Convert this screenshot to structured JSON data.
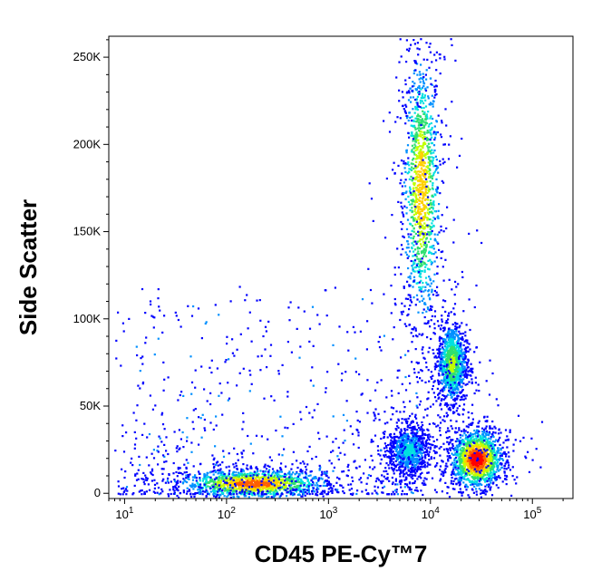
{
  "chart_data": {
    "type": "scatter",
    "xlabel": "CD45 PE-Cy™7",
    "ylabel": "Side Scatter",
    "x_scale": "log",
    "xlim": [
      7,
      250000
    ],
    "ylim": [
      -3000,
      262000
    ],
    "x_ticks": [
      {
        "value": 10,
        "base": "10",
        "exp": "1"
      },
      {
        "value": 100,
        "base": "10",
        "exp": "2"
      },
      {
        "value": 1000,
        "base": "10",
        "exp": "3"
      },
      {
        "value": 10000,
        "base": "10",
        "exp": "4"
      },
      {
        "value": 100000,
        "base": "10",
        "exp": "5"
      }
    ],
    "y_ticks": [
      {
        "value": 0,
        "label": "0"
      },
      {
        "value": 50000,
        "label": "50K"
      },
      {
        "value": 100000,
        "label": "100K"
      },
      {
        "value": 150000,
        "label": "150K"
      },
      {
        "value": 200000,
        "label": "200K"
      },
      {
        "value": 250000,
        "label": "250K"
      }
    ],
    "grid": false,
    "density_colormap": [
      "#0000ff",
      "#0090ff",
      "#00e0e0",
      "#30e070",
      "#c0ff00",
      "#ffd000",
      "#ff6000",
      "#ff0000"
    ],
    "populations": [
      {
        "x_center": 8000,
        "y_center": 175000,
        "x_spread_decades": 0.09,
        "y_spread": 38000,
        "peak_density": 0.72
      },
      {
        "x_center": 16000,
        "y_center": 75000,
        "x_spread_decades": 0.07,
        "y_spread": 11000,
        "peak_density": 0.55
      },
      {
        "x_center": 28000,
        "y_center": 20000,
        "x_spread_decades": 0.12,
        "y_spread": 8000,
        "peak_density": 1.0
      },
      {
        "x_center": 180,
        "y_center": 6000,
        "x_spread_decades": 0.35,
        "y_spread": 4000,
        "peak_density": 0.85
      },
      {
        "x_center": 6000,
        "y_center": 25000,
        "x_spread_decades": 0.1,
        "y_spread": 7000,
        "peak_density": 0.3
      }
    ]
  }
}
